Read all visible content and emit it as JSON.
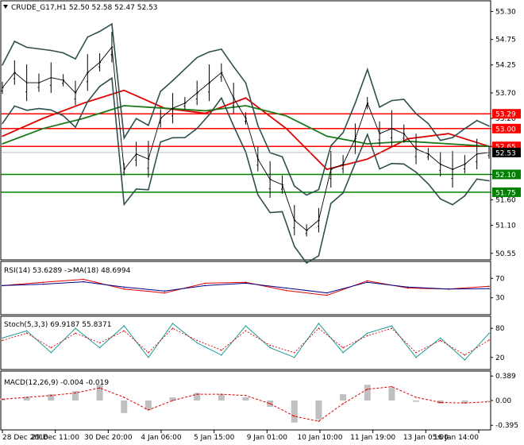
{
  "colors": {
    "red_line": "#ff0000",
    "green_line": "#008000",
    "price_tag_red": "#ff0000",
    "price_tag_green": "#008000",
    "current_price_tag": "#000000",
    "ma_red": "#e00000",
    "ma_dark_green": "#1a7a1a",
    "bands": "#2f4f4f",
    "rsi_line": "#e00000",
    "rsi_ma": "#00008b",
    "stoch_main": "#1a9a9a",
    "stoch_signal": "#e00000",
    "macd_hist": "#c0c0c0",
    "macd_signal": "#e00000"
  },
  "header": {
    "dropdown_icon": "triangle-down-icon",
    "symbol_text": "CRUDE_G17,H1  52.50 52.58 52.47 52.53"
  },
  "chart_data": [
    {
      "type": "line",
      "title": "CRUDE_G17,H1  52.50 52.58 52.47 52.53",
      "y_ticks": [
        "55.30",
        "54.75",
        "54.25",
        "53.70",
        "53.20",
        "52.65",
        "52.10",
        "51.60",
        "51.10",
        "50.55"
      ],
      "y_range": [
        50.5,
        55.4
      ],
      "horizontal_lines": [
        {
          "value": 53.29,
          "label": "53.29",
          "color": "red"
        },
        {
          "value": 53.0,
          "label": "53.00",
          "color": "red"
        },
        {
          "value": 52.65,
          "label": "52.65",
          "color": "red"
        },
        {
          "value": 52.1,
          "label": "52.10",
          "color": "green"
        },
        {
          "value": 51.75,
          "label": "51.75",
          "color": "green"
        }
      ],
      "current_price": {
        "value": 52.53,
        "label": "52.53"
      },
      "series": [
        {
          "role": "price",
          "x": [
            0,
            3,
            6,
            9,
            12,
            15,
            18,
            21,
            24,
            27,
            30,
            33,
            36,
            39,
            42,
            45,
            48,
            51,
            54,
            57,
            60,
            63,
            66,
            69,
            72,
            75,
            78,
            81,
            84,
            87,
            90,
            93,
            96,
            99,
            102,
            105,
            108,
            111,
            114,
            117,
            120
          ],
          "values": [
            53.8,
            54.1,
            53.9,
            53.9,
            54.0,
            53.95,
            53.7,
            54.1,
            54.3,
            54.6,
            52.2,
            52.5,
            52.4,
            53.2,
            53.4,
            53.5,
            53.7,
            53.9,
            54.1,
            53.6,
            53.2,
            52.4,
            52.0,
            51.9,
            51.2,
            51.0,
            51.2,
            52.2,
            52.3,
            52.8,
            53.5,
            52.9,
            53.0,
            52.9,
            52.6,
            52.5,
            52.3,
            52.2,
            52.3,
            52.5,
            52.53
          ]
        },
        {
          "role": "ma_red",
          "x": [
            0,
            10,
            20,
            30,
            40,
            50,
            60,
            70,
            80,
            90,
            100,
            110,
            120
          ],
          "values": [
            52.85,
            53.2,
            53.5,
            53.75,
            53.4,
            53.3,
            53.6,
            53.0,
            52.2,
            52.4,
            52.8,
            52.9,
            52.65
          ]
        },
        {
          "role": "ma_dark_green",
          "x": [
            0,
            10,
            20,
            30,
            40,
            50,
            60,
            70,
            80,
            90,
            100,
            110,
            120
          ],
          "values": [
            52.7,
            53.0,
            53.2,
            53.45,
            53.4,
            53.35,
            53.45,
            53.25,
            52.85,
            52.7,
            52.75,
            52.7,
            52.65
          ]
        }
      ],
      "x_labels": [
        "28 Dec 2016",
        "29 Dec 11:00",
        "30 Dec 20:00",
        "4 Jan 06:00",
        "5 Jan 15:00",
        "9 Jan 01:00",
        "10 Jan 10:00",
        "11 Jan 19:00",
        "13 Jan 05:00",
        "16 Jan 14:00"
      ]
    },
    {
      "type": "line",
      "title": "RSI(14) 53.6289  ->MA(18) 48.6994",
      "y_ticks": [
        "70",
        "30"
      ],
      "y_range": [
        0,
        100
      ],
      "series": [
        {
          "role": "rsi",
          "x": [
            0,
            10,
            20,
            30,
            40,
            50,
            60,
            70,
            80,
            90,
            100,
            110,
            120
          ],
          "values": [
            55,
            62,
            68,
            48,
            40,
            60,
            62,
            45,
            35,
            65,
            50,
            48,
            53.6
          ]
        },
        {
          "role": "rsi_ma",
          "x": [
            0,
            10,
            20,
            30,
            40,
            50,
            60,
            70,
            80,
            90,
            100,
            110,
            120
          ],
          "values": [
            55,
            58,
            63,
            52,
            44,
            55,
            60,
            50,
            40,
            62,
            52,
            48,
            48.7
          ]
        }
      ]
    },
    {
      "type": "line",
      "title": "Stoch(5,3,3) 69.9187  55.8371",
      "y_ticks": [
        "80",
        "20"
      ],
      "y_range": [
        0,
        100
      ],
      "series": [
        {
          "role": "stoch_main",
          "x": [
            0,
            6,
            12,
            18,
            24,
            30,
            36,
            42,
            48,
            54,
            60,
            66,
            72,
            78,
            84,
            90,
            96,
            102,
            108,
            114,
            120
          ],
          "values": [
            60,
            75,
            30,
            80,
            40,
            85,
            20,
            90,
            50,
            25,
            85,
            40,
            20,
            90,
            30,
            70,
            85,
            20,
            60,
            15,
            69.9
          ]
        },
        {
          "role": "stoch_signal",
          "x": [
            0,
            6,
            12,
            18,
            24,
            30,
            36,
            42,
            48,
            54,
            60,
            66,
            72,
            78,
            84,
            90,
            96,
            102,
            108,
            114,
            120
          ],
          "values": [
            55,
            70,
            40,
            70,
            50,
            75,
            30,
            80,
            55,
            35,
            75,
            45,
            30,
            80,
            40,
            65,
            80,
            30,
            55,
            25,
            55.8
          ]
        }
      ]
    },
    {
      "type": "bar",
      "title": "MACD(12,26,9) -0.004 -0.019",
      "y_ticks": [
        "0.389",
        "0.00",
        "-0.395"
      ],
      "y_range": [
        -0.43,
        0.43
      ],
      "series": [
        {
          "role": "macd_hist",
          "x": [
            0,
            6,
            12,
            18,
            24,
            30,
            36,
            42,
            48,
            54,
            60,
            66,
            72,
            78,
            84,
            90,
            96,
            102,
            108,
            114,
            120
          ],
          "values": [
            0.03,
            0.06,
            0.1,
            0.15,
            0.25,
            -0.2,
            -0.15,
            0.05,
            0.12,
            0.1,
            0.05,
            -0.1,
            -0.35,
            -0.3,
            0.1,
            0.25,
            0.2,
            -0.02,
            -0.05,
            -0.04,
            -0.004
          ]
        },
        {
          "role": "macd_signal",
          "x": [
            0,
            6,
            12,
            18,
            24,
            30,
            36,
            42,
            48,
            54,
            60,
            66,
            72,
            78,
            84,
            90,
            96,
            102,
            108,
            114,
            120
          ],
          "values": [
            0.02,
            0.05,
            0.08,
            0.12,
            0.2,
            0.05,
            -0.15,
            0.0,
            0.1,
            0.1,
            0.08,
            -0.05,
            -0.25,
            -0.33,
            -0.05,
            0.18,
            0.22,
            0.05,
            -0.03,
            -0.04,
            -0.019
          ]
        }
      ]
    }
  ]
}
